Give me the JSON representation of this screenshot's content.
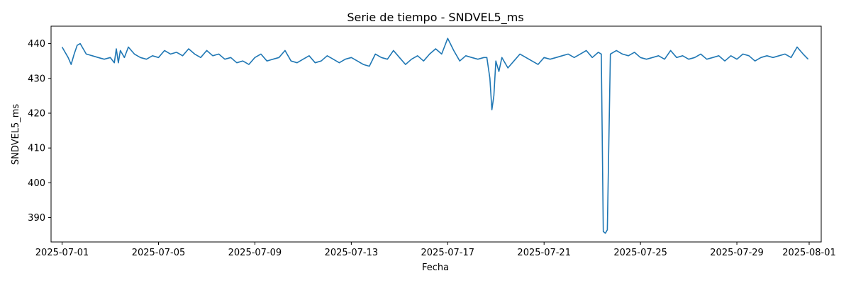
{
  "chart_data": {
    "type": "line",
    "title": "Serie de tiempo - SNDVEL5_ms",
    "xlabel": "Fecha",
    "ylabel": "SNDVEL5_ms",
    "xlim": [
      "2025-06-30T13:00",
      "2025-08-01T12:00"
    ],
    "ylim": [
      383,
      445
    ],
    "x_ticks": [
      "2025-07-01",
      "2025-07-05",
      "2025-07-09",
      "2025-07-13",
      "2025-07-17",
      "2025-07-21",
      "2025-07-25",
      "2025-07-29",
      "2025-08-01"
    ],
    "y_ticks": [
      390,
      400,
      410,
      420,
      430,
      440
    ],
    "grid": false,
    "legend": "none",
    "series": [
      {
        "color": "#1f77b4",
        "x": [
          "2025-07-01T00:00",
          "2025-07-01T03:00",
          "2025-07-01T06:00",
          "2025-07-01T09:00",
          "2025-07-01T12:00",
          "2025-07-01T15:00",
          "2025-07-01T18:00",
          "2025-07-02T00:00",
          "2025-07-02T06:00",
          "2025-07-02T12:00",
          "2025-07-02T18:00",
          "2025-07-03T00:00",
          "2025-07-03T04:00",
          "2025-07-03T06:00",
          "2025-07-03T08:00",
          "2025-07-03T10:00",
          "2025-07-03T14:00",
          "2025-07-03T18:00",
          "2025-07-04T00:00",
          "2025-07-04T06:00",
          "2025-07-04T12:00",
          "2025-07-04T18:00",
          "2025-07-05T00:00",
          "2025-07-05T06:00",
          "2025-07-05T12:00",
          "2025-07-05T18:00",
          "2025-07-06T00:00",
          "2025-07-06T06:00",
          "2025-07-06T12:00",
          "2025-07-06T18:00",
          "2025-07-07T00:00",
          "2025-07-07T06:00",
          "2025-07-07T12:00",
          "2025-07-07T18:00",
          "2025-07-08T00:00",
          "2025-07-08T06:00",
          "2025-07-08T12:00",
          "2025-07-08T18:00",
          "2025-07-09T00:00",
          "2025-07-09T06:00",
          "2025-07-09T12:00",
          "2025-07-09T18:00",
          "2025-07-10T00:00",
          "2025-07-10T06:00",
          "2025-07-10T12:00",
          "2025-07-10T18:00",
          "2025-07-11T00:00",
          "2025-07-11T06:00",
          "2025-07-11T12:00",
          "2025-07-11T18:00",
          "2025-07-12T00:00",
          "2025-07-12T06:00",
          "2025-07-12T12:00",
          "2025-07-12T18:00",
          "2025-07-13T00:00",
          "2025-07-13T06:00",
          "2025-07-13T12:00",
          "2025-07-13T18:00",
          "2025-07-14T00:00",
          "2025-07-14T06:00",
          "2025-07-14T12:00",
          "2025-07-14T18:00",
          "2025-07-15T00:00",
          "2025-07-15T06:00",
          "2025-07-15T12:00",
          "2025-07-15T18:00",
          "2025-07-16T00:00",
          "2025-07-16T06:00",
          "2025-07-16T12:00",
          "2025-07-16T18:00",
          "2025-07-17T00:00",
          "2025-07-17T06:00",
          "2025-07-17T12:00",
          "2025-07-17T18:00",
          "2025-07-18T00:00",
          "2025-07-18T06:00",
          "2025-07-18T12:00",
          "2025-07-18T15:00",
          "2025-07-18T18:00",
          "2025-07-18T20:00",
          "2025-07-18T22:00",
          "2025-07-19T00:00",
          "2025-07-19T03:00",
          "2025-07-19T06:00",
          "2025-07-19T12:00",
          "2025-07-19T18:00",
          "2025-07-20T00:00",
          "2025-07-20T06:00",
          "2025-07-20T12:00",
          "2025-07-20T18:00",
          "2025-07-21T00:00",
          "2025-07-21T06:00",
          "2025-07-21T12:00",
          "2025-07-21T18:00",
          "2025-07-22T00:00",
          "2025-07-22T06:00",
          "2025-07-22T12:00",
          "2025-07-22T18:00",
          "2025-07-23T00:00",
          "2025-07-23T06:00",
          "2025-07-23T09:00",
          "2025-07-23T11:00",
          "2025-07-23T13:00",
          "2025-07-23T15:00",
          "2025-07-23T18:00",
          "2025-07-23T21:00",
          "2025-07-24T00:00",
          "2025-07-24T03:00",
          "2025-07-24T06:00",
          "2025-07-24T12:00",
          "2025-07-24T18:00",
          "2025-07-25T00:00",
          "2025-07-25T06:00",
          "2025-07-25T12:00",
          "2025-07-25T18:00",
          "2025-07-26T00:00",
          "2025-07-26T06:00",
          "2025-07-26T12:00",
          "2025-07-26T18:00",
          "2025-07-27T00:00",
          "2025-07-27T06:00",
          "2025-07-27T12:00",
          "2025-07-27T18:00",
          "2025-07-28T00:00",
          "2025-07-28T06:00",
          "2025-07-28T12:00",
          "2025-07-28T18:00",
          "2025-07-29T00:00",
          "2025-07-29T06:00",
          "2025-07-29T12:00",
          "2025-07-29T18:00",
          "2025-07-30T00:00",
          "2025-07-30T06:00",
          "2025-07-30T12:00",
          "2025-07-30T18:00",
          "2025-07-31T00:00",
          "2025-07-31T06:00",
          "2025-07-31T12:00",
          "2025-07-31T18:00",
          "2025-07-31T23:00"
        ],
        "y": [
          439,
          437.5,
          436,
          434,
          437,
          439.5,
          440,
          437,
          436.5,
          436,
          435.5,
          436,
          434.5,
          438.5,
          434.5,
          438,
          436,
          439,
          437,
          436,
          435.5,
          436.5,
          436,
          438,
          437,
          437.5,
          436.5,
          438.5,
          437,
          436,
          438,
          436.5,
          437,
          435.5,
          436,
          434.5,
          435,
          434,
          436,
          437,
          435,
          435.5,
          436,
          438,
          435,
          434.5,
          435.5,
          436.5,
          434.5,
          435,
          436.5,
          435.5,
          434.5,
          435.5,
          436,
          435,
          434,
          433.5,
          437,
          436,
          435.5,
          438,
          436,
          434,
          435.5,
          436.5,
          435,
          437,
          438.5,
          437,
          441.5,
          438,
          435,
          436.5,
          436,
          435.5,
          436,
          436,
          430,
          421,
          425,
          435,
          432,
          436,
          433,
          435,
          437,
          436,
          435,
          434,
          436,
          435.5,
          436,
          436.5,
          437,
          436,
          437,
          438,
          436,
          437.5,
          437,
          386,
          385.5,
          386.5,
          437,
          437.5,
          438,
          437.5,
          437,
          436.5,
          437.5,
          436,
          435.5,
          436,
          436.5,
          435.5,
          438,
          436,
          436.5,
          435.5,
          436,
          437,
          435.5,
          436,
          436.5,
          435,
          436.5,
          435.5,
          437,
          436.5,
          435,
          436,
          436.5,
          436,
          436.5,
          437,
          436,
          439,
          437,
          435.5
        ]
      }
    ]
  }
}
